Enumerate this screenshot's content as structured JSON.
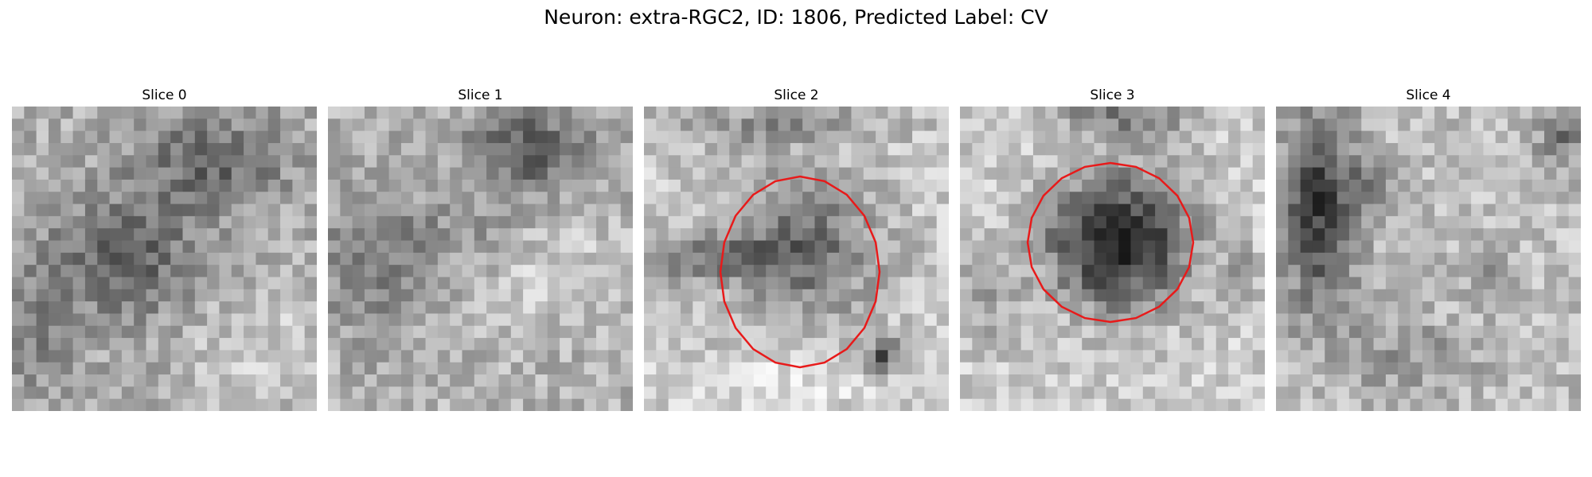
{
  "figure": {
    "title": "Neuron: extra-RGC2, ID: 1806, Predicted Label: CV",
    "colors": {
      "background": "#ffffff",
      "contour": "#e81a1a",
      "colormap": "grayscale"
    }
  },
  "panels": [
    {
      "title": "Slice 0",
      "has_contour": false
    },
    {
      "title": "Slice 1",
      "has_contour": false
    },
    {
      "title": "Slice 2",
      "has_contour": true
    },
    {
      "title": "Slice 3",
      "has_contour": true
    },
    {
      "title": "Slice 4",
      "has_contour": false
    }
  ]
}
